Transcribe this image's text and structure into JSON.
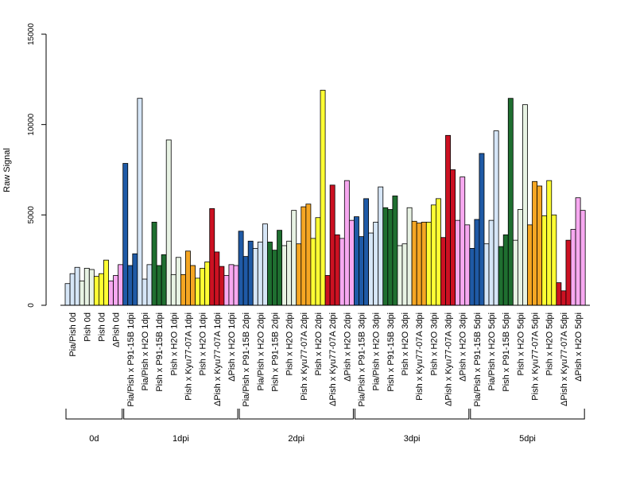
{
  "chart_data": {
    "type": "bar",
    "ylabel": "Raw Signal",
    "ylim": [
      0,
      15000
    ],
    "yticks": [
      0,
      5000,
      10000,
      15000
    ],
    "grid": false,
    "groups": [
      {
        "label": "0d",
        "categories": [
          {
            "label": "Pia/Pish 0d",
            "color": "#d6e6f7",
            "values": [
              1200,
              1750,
              2100
            ]
          },
          {
            "label": "Pish 0d",
            "color": "#e8f3e4",
            "values": [
              1350,
              2050,
              1980
            ]
          },
          {
            "label": "Pish 0d",
            "color": "#ffff33",
            "values": [
              1600,
              1750,
              2500
            ]
          },
          {
            "label": "ΔPish 0d",
            "color": "#f7a8f0",
            "values": [
              1350,
              1650,
              2250
            ]
          }
        ]
      },
      {
        "label": "1dpi",
        "categories": [
          {
            "label": "Pia/Pish x P91-15B 1dpi",
            "color": "#1f5aa6",
            "values": [
              7850,
              2200,
              2850
            ]
          },
          {
            "label": "Pia/Pish x H2O 1dpi",
            "color": "#d6e6f7",
            "values": [
              11450,
              1450,
              2250
            ]
          },
          {
            "label": "Pish x P91-15B 1dpi",
            "color": "#1f6f30",
            "values": [
              4600,
              2200,
              2800
            ]
          },
          {
            "label": "Pish x H2O 1dpi",
            "color": "#e8f3e4",
            "values": [
              9150,
              1700,
              2650
            ]
          },
          {
            "label": "Pish x Kyu77-07A 1dpi",
            "color": "#f5a623",
            "values": [
              1700,
              3000,
              2200
            ]
          },
          {
            "label": "Pish x H2O 1dpi",
            "color": "#ffff33",
            "values": [
              1500,
              2050,
              2400
            ]
          },
          {
            "label": "ΔPish x Kyu77-07A 1dpi",
            "color": "#cc1122",
            "values": [
              5350,
              2950,
              2150
            ]
          },
          {
            "label": "ΔPish x H2O 1dpi",
            "color": "#f7a8f0",
            "values": [
              1650,
              2250,
              2200
            ]
          }
        ]
      },
      {
        "label": "2dpi",
        "categories": [
          {
            "label": "Pia/Pish x P91-15B 2dpi",
            "color": "#1f5aa6",
            "values": [
              4100,
              2700,
              3550
            ]
          },
          {
            "label": "Pia/Pish x H2O 2dpi",
            "color": "#d6e6f7",
            "values": [
              3150,
              3500,
              4500
            ]
          },
          {
            "label": "Pish x P91-15B 2dpi",
            "color": "#1f6f30",
            "values": [
              3500,
              3050,
              4150
            ]
          },
          {
            "label": "Pish x H2O 2dpi",
            "color": "#e8f3e4",
            "values": [
              3300,
              3550,
              5250
            ]
          },
          {
            "label": "Pish x Kyu77-07A 2dpi",
            "color": "#f5a623",
            "values": [
              3400,
              5450,
              5600
            ]
          },
          {
            "label": "Pish x H2O 2dpi",
            "color": "#ffff33",
            "values": [
              3700,
              4850,
              11900
            ]
          },
          {
            "label": "ΔPish x Kyu77-07A 2dpi",
            "color": "#cc1122",
            "values": [
              1650,
              6650,
              3900
            ]
          },
          {
            "label": "ΔPish x H2O 2dpi",
            "color": "#f7a8f0",
            "values": [
              3700,
              6900,
              4700
            ]
          }
        ]
      },
      {
        "label": "3dpi",
        "categories": [
          {
            "label": "Pia/Pish x P91-15B 3dpi",
            "color": "#1f5aa6",
            "values": [
              4900,
              3800,
              5900
            ]
          },
          {
            "label": "Pia/Pish x H2O 3dpi",
            "color": "#d6e6f7",
            "values": [
              4000,
              4600,
              6550
            ]
          },
          {
            "label": "Pish x P91-15B 3dpi",
            "color": "#1f6f30",
            "values": [
              5400,
              5300,
              6050
            ]
          },
          {
            "label": "Pish x H2O 3dpi",
            "color": "#e8f3e4",
            "values": [
              3300,
              3400,
              5400
            ]
          },
          {
            "label": "Pish x Kyu77-07A 3dpi",
            "color": "#f5a623",
            "values": [
              4650,
              4550,
              4600
            ]
          },
          {
            "label": "Pish x H2O 3dpi",
            "color": "#ffff33",
            "values": [
              4600,
              5550,
              5900
            ]
          },
          {
            "label": "ΔPish x Kyu77-07A 3dpi",
            "color": "#cc1122",
            "values": [
              3750,
              9400,
              7500
            ]
          },
          {
            "label": "ΔPish x H2O 3dpi",
            "color": "#f7a8f0",
            "values": [
              4700,
              7100,
              4450
            ]
          }
        ]
      },
      {
        "label": "5dpi",
        "categories": [
          {
            "label": "Pia/Pish x P91-15B 5dpi",
            "color": "#1f5aa6",
            "values": [
              3150,
              4750,
              8400
            ]
          },
          {
            "label": "Pia/Pish x H2O 5dpi",
            "color": "#d6e6f7",
            "values": [
              3400,
              4700,
              9650
            ]
          },
          {
            "label": "Pish x P91-15B 5dpi",
            "color": "#1f6f30",
            "values": [
              3250,
              3900,
              11450
            ]
          },
          {
            "label": "Pish x H2O 5dpi",
            "color": "#e8f3e4",
            "values": [
              3600,
              5300,
              11100
            ]
          },
          {
            "label": "Pish x Kyu77-07A 5dpi",
            "color": "#f5a623",
            "values": [
              4450,
              6850,
              6600
            ]
          },
          {
            "label": "Pish x H2O 5dpi",
            "color": "#ffff33",
            "values": [
              4950,
              6900,
              5000
            ]
          },
          {
            "label": "ΔPish x Kyu77-07A 5dpi",
            "color": "#cc1122",
            "values": [
              1250,
              800,
              3600
            ]
          },
          {
            "label": "ΔPish x H2O 5dpi",
            "color": "#f7a8f0",
            "values": [
              4200,
              5950,
              5250
            ]
          }
        ]
      }
    ]
  }
}
